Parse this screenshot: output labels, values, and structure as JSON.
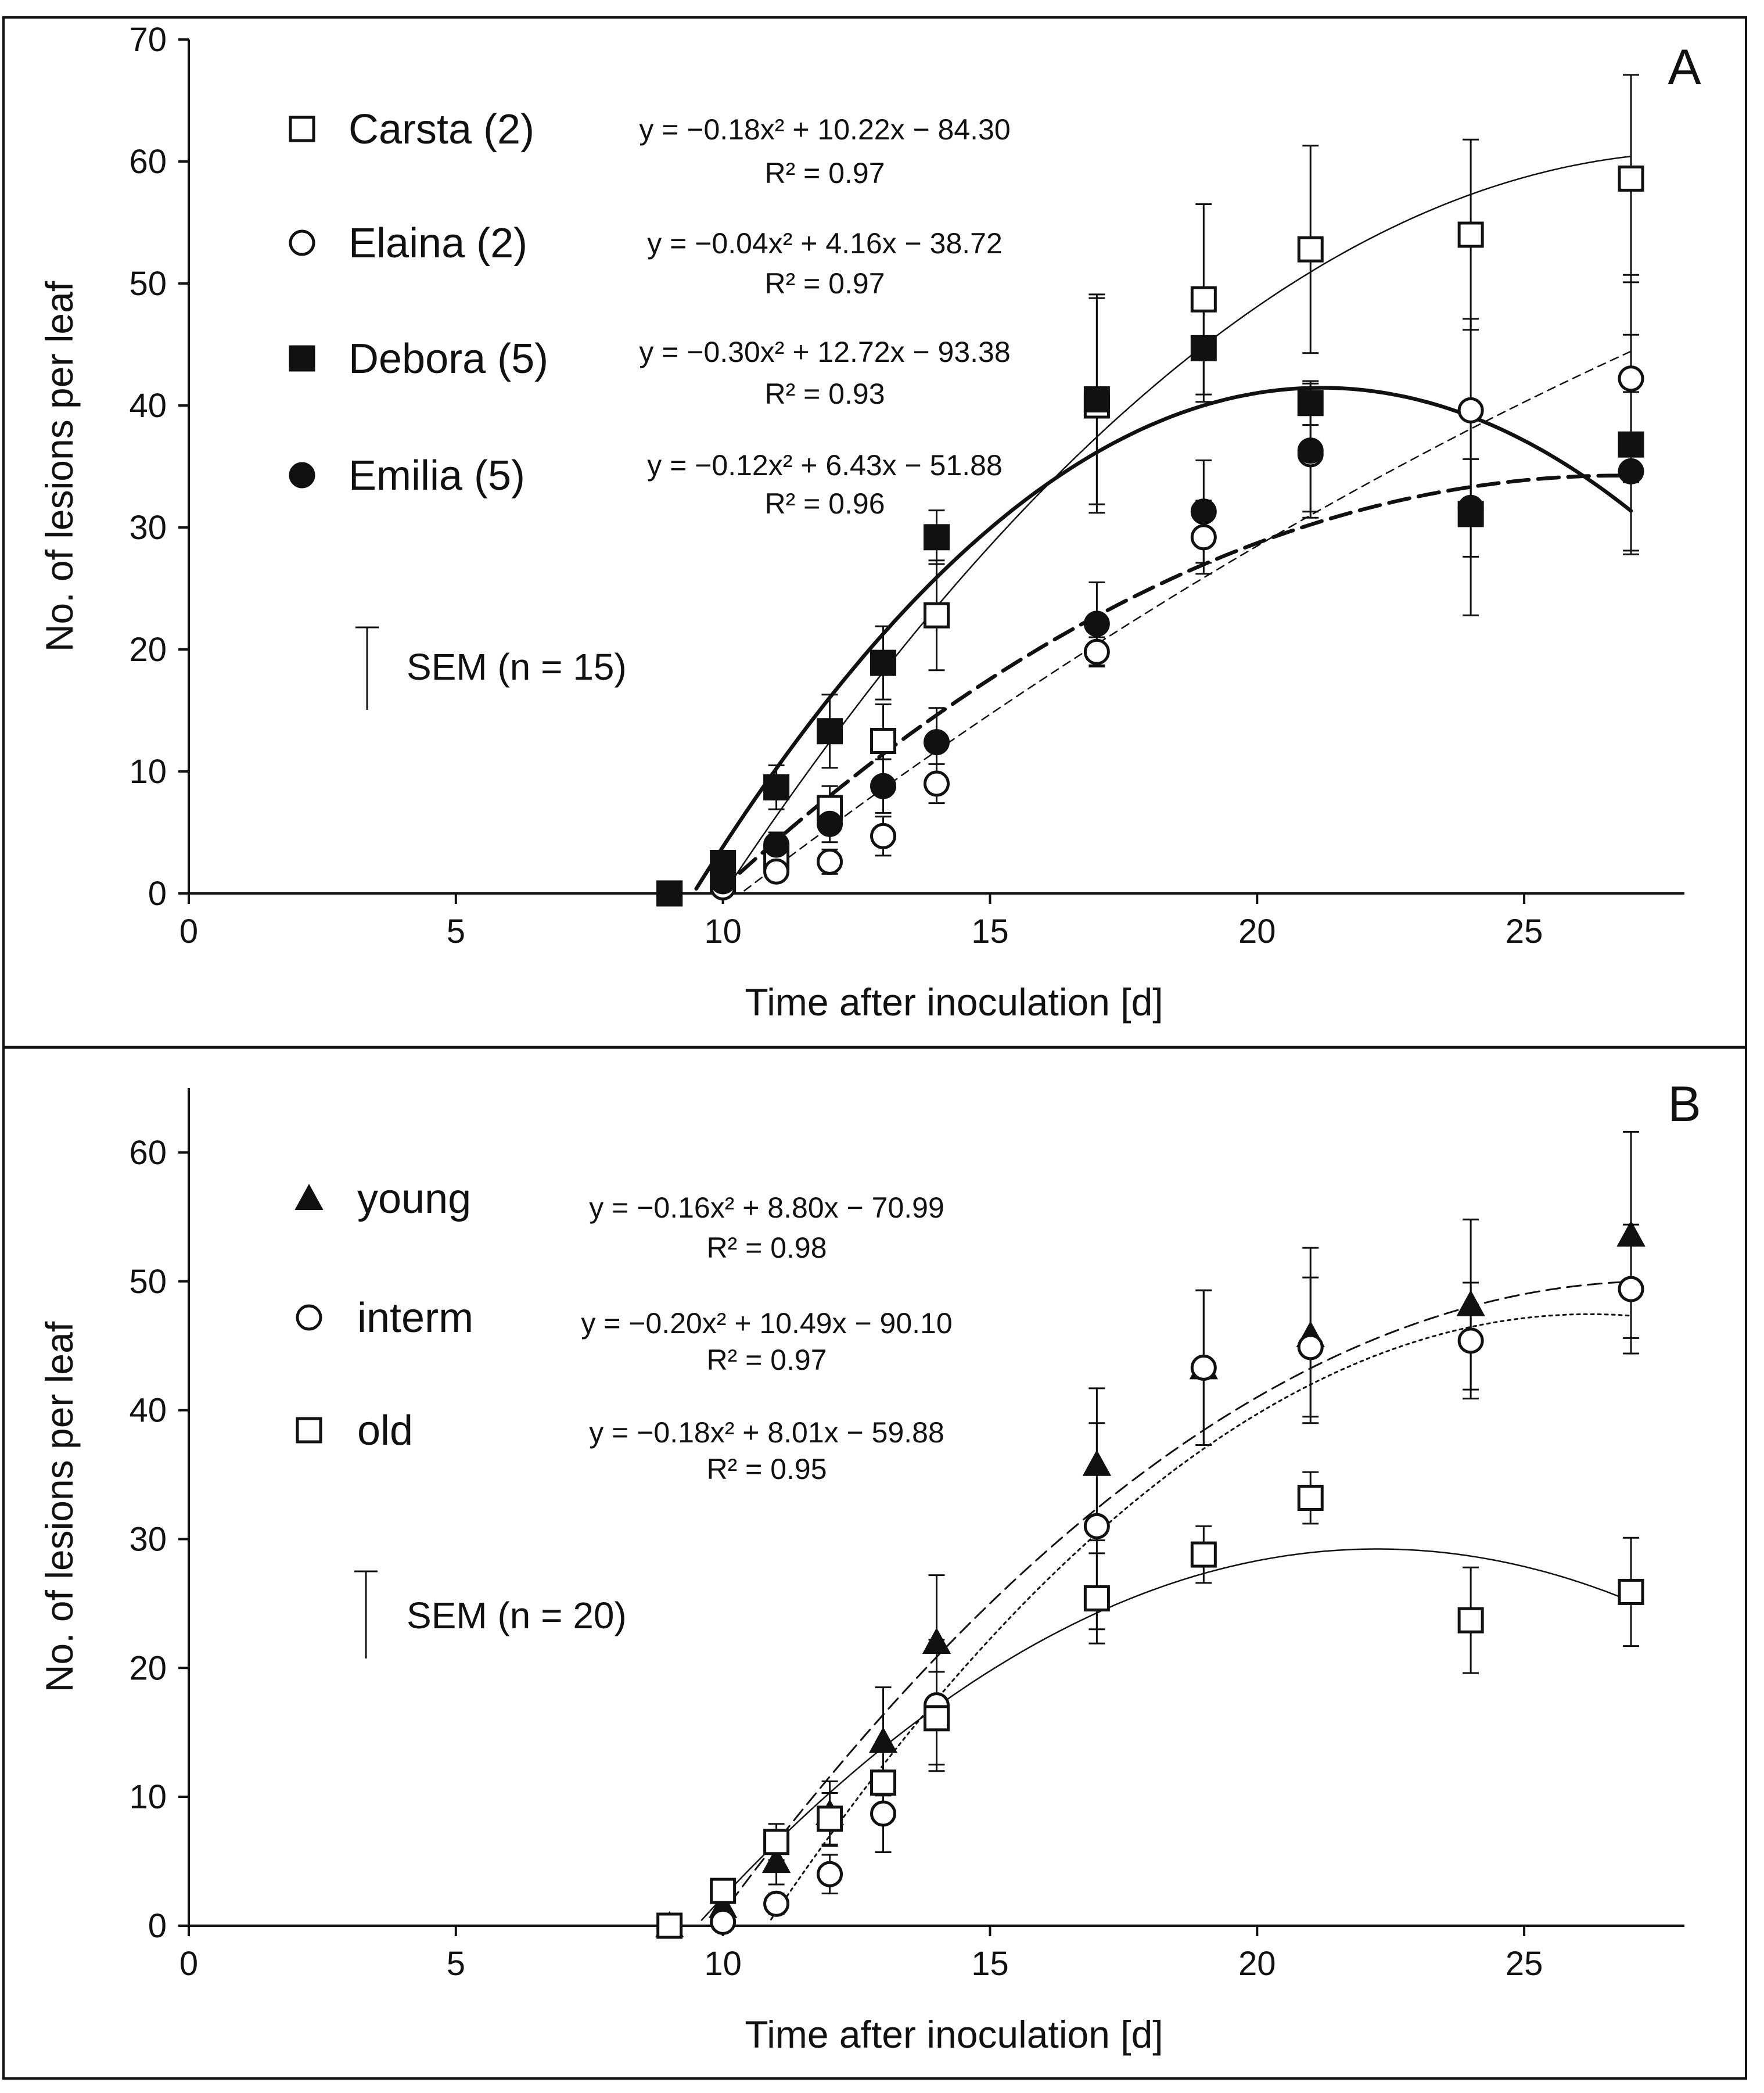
{
  "chart_data": [
    {
      "type": "scatter",
      "panel": "A",
      "xlabel": "Time after inoculation  [d]",
      "ylabel": "No. of lesions per leaf",
      "xlim": [
        0,
        28
      ],
      "ylim": [
        0,
        70
      ],
      "xticks": [
        0,
        5,
        10,
        15,
        20,
        25
      ],
      "yticks": [
        0,
        10,
        20,
        30,
        40,
        50,
        60,
        70
      ],
      "grid": false,
      "legend_position": "top-left",
      "sem_note": "SEM (n = 15)",
      "series": [
        {
          "name": "Carsta (2)",
          "marker": "square-open",
          "line": "thin-solid",
          "x": [
            9,
            10,
            11,
            12,
            13,
            14,
            17,
            19,
            21,
            24,
            27
          ],
          "values": [
            0,
            1,
            3,
            7,
            12.5,
            22.8,
            40,
            48.7,
            52.8,
            54,
            58.6
          ],
          "errors": [
            0,
            0.8,
            1.2,
            1.8,
            3,
            4.5,
            8.8,
            7.8,
            8.5,
            7.8,
            8.5
          ],
          "equation": "y = −0.18x² + 10.22x − 84.30",
          "r2": "R² = 0.97",
          "fit": [
            -0.18,
            10.22,
            -84.3
          ]
        },
        {
          "name": "Elaina (2)",
          "marker": "circle-open",
          "line": "thin-dashed",
          "x": [
            9,
            10,
            11,
            12,
            13,
            14,
            17,
            19,
            21,
            24,
            27
          ],
          "values": [
            0,
            0.5,
            1.8,
            2.6,
            4.7,
            9,
            19.8,
            29.2,
            36,
            39.6,
            42.2
          ],
          "errors": [
            0,
            0.5,
            0.8,
            1,
            1.6,
            1.6,
            1.2,
            3,
            4.7,
            7.5,
            8.5
          ],
          "equation": "y = −0.04x² + 4.16x − 38.72",
          "r2": "R² = 0.97",
          "fit": [
            -0.04,
            4.16,
            -38.72
          ]
        },
        {
          "name": "Debora (5)",
          "marker": "square-filled",
          "line": "thick-solid",
          "x": [
            9,
            10,
            11,
            12,
            13,
            14,
            17,
            19,
            21,
            24,
            27
          ],
          "values": [
            0,
            2.5,
            8.7,
            13.3,
            18.9,
            29.2,
            40.5,
            44.7,
            40.2,
            31.1,
            36.8
          ],
          "errors": [
            0,
            0.7,
            1.8,
            3,
            3,
            2.2,
            8.6,
            4.4,
            1.8,
            8.3,
            9
          ],
          "equation": "y = −0.30x² + 12.72x − 93.38",
          "r2": "R² = 0.93",
          "fit": [
            -0.3,
            12.72,
            -93.38
          ]
        },
        {
          "name": "Emilia (5)",
          "marker": "circle-filled",
          "line": "thick-dashed",
          "x": [
            9,
            10,
            11,
            12,
            13,
            14,
            17,
            19,
            21,
            24,
            27
          ],
          "values": [
            0,
            1,
            4,
            5.7,
            8.8,
            12.4,
            22.1,
            31.3,
            36.3,
            31.6,
            34.6
          ],
          "errors": [
            0,
            0.6,
            1,
            1.5,
            2.2,
            2.8,
            3.4,
            4.2,
            5.5,
            4,
            6.5
          ],
          "equation": "y = −0.12x² + 6.43x − 51.88",
          "r2": "R² = 0.96",
          "fit": [
            -0.12,
            6.43,
            -51.88
          ]
        }
      ]
    },
    {
      "type": "scatter",
      "panel": "B",
      "xlabel": "Time after inoculation  [d]",
      "ylabel": "No. of lesions per leaf",
      "xlim": [
        0,
        28
      ],
      "ylim": [
        0,
        65
      ],
      "xticks": [
        0,
        5,
        10,
        15,
        20,
        25
      ],
      "yticks": [
        0,
        10,
        20,
        30,
        40,
        50,
        60
      ],
      "grid": false,
      "legend_position": "top-left",
      "sem_note": "SEM (n = 20)",
      "series": [
        {
          "name": "young",
          "marker": "triangle-filled",
          "line": "long-dashed",
          "x": [
            9,
            10,
            11,
            12,
            13,
            14,
            17,
            19,
            21,
            24,
            27
          ],
          "values": [
            0,
            1.5,
            5,
            8.7,
            14.3,
            22,
            35.8,
            43.3,
            45.8,
            48.2,
            53.6
          ],
          "errors": [
            0,
            0.8,
            1.8,
            2.5,
            4.2,
            5.2,
            5.9,
            6,
            6.8,
            6.6,
            8
          ],
          "equation": "y = −0.16x² + 8.80x − 70.99",
          "r2": "R² = 0.98",
          "fit": [
            -0.16,
            8.8,
            -70.99
          ]
        },
        {
          "name": "interm",
          "marker": "circle-open",
          "line": "dotted",
          "x": [
            9,
            10,
            11,
            12,
            13,
            14,
            17,
            19,
            21,
            24,
            27
          ],
          "values": [
            0,
            0.3,
            1.7,
            4,
            8.7,
            17.1,
            31,
            43.3,
            44.9,
            45.4,
            49.4
          ],
          "errors": [
            0,
            0.4,
            0.8,
            1.5,
            3,
            5.1,
            8,
            6,
            5.4,
            4.5,
            5
          ],
          "equation": "y = −0.20x² + 10.49x − 90.10",
          "r2": "R² = 0.97",
          "fit": [
            -0.2,
            10.49,
            -90.1
          ]
        },
        {
          "name": "old",
          "marker": "square-open",
          "line": "thin-solid",
          "x": [
            9,
            10,
            11,
            12,
            13,
            14,
            17,
            19,
            21,
            24,
            27
          ],
          "values": [
            0,
            2.7,
            6.5,
            8.3,
            11.1,
            16.1,
            25.4,
            28.8,
            33.2,
            23.7,
            25.9
          ],
          "errors": [
            0,
            0.8,
            1.4,
            2,
            2.5,
            3.6,
            3.5,
            2.2,
            2,
            4.1,
            4.2
          ],
          "equation": "y = −0.18x² + 8.01x − 59.88",
          "r2": "R² = 0.95",
          "fit": [
            -0.18,
            8.01,
            -59.88
          ]
        }
      ]
    }
  ]
}
